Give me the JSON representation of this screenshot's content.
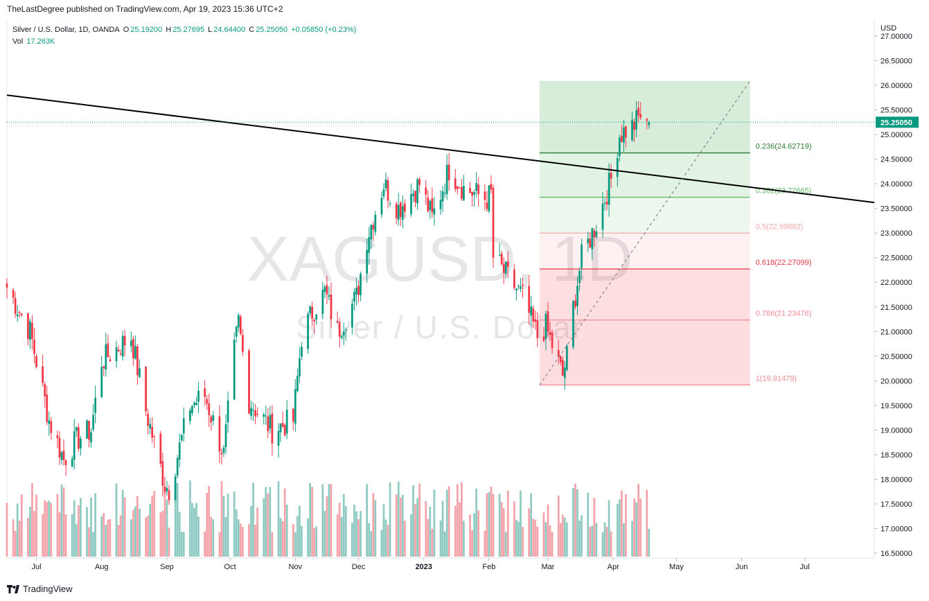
{
  "header": {
    "text": "TheLastDegree published on TradingView.com, Apr 19, 2023 15:36 UTC+2"
  },
  "legend": {
    "symbol": "Silver / U.S. Dollar, 1D, OANDA",
    "o_label": "O",
    "o_val": "25.19200",
    "h_label": "H",
    "h_val": "25.27695",
    "l_label": "L",
    "l_val": "24.64400",
    "c_label": "C",
    "c_val": "25.25050",
    "change": "+0.05850 (+0.23%)",
    "vol_label": "Vol",
    "vol_val": "17.263K"
  },
  "watermark": {
    "symbol": "XAGUSD, 1D",
    "name": "Silver / U.S. Dollar"
  },
  "footer": {
    "brand": "TradingView"
  },
  "chart_data": {
    "type": "candlestick",
    "currency_label": "USD",
    "last_price_label": "25.25050",
    "y_ticks": [
      "16.50000",
      "17.00000",
      "17.50000",
      "18.00000",
      "18.50000",
      "19.00000",
      "19.50000",
      "20.00000",
      "20.50000",
      "21.00000",
      "21.50000",
      "22.00000",
      "22.50000",
      "23.00000",
      "23.50000",
      "24.00000",
      "24.50000",
      "25.00000",
      "25.50000",
      "26.00000",
      "26.50000",
      "27.00000"
    ],
    "y_range": [
      16.4,
      27.5
    ],
    "x_ticks": [
      {
        "label": "Jul",
        "date": "2022-07-01"
      },
      {
        "label": "Aug",
        "date": "2022-08-01"
      },
      {
        "label": "Sep",
        "date": "2022-09-01"
      },
      {
        "label": "Oct",
        "date": "2022-10-01"
      },
      {
        "label": "Nov",
        "date": "2022-11-01"
      },
      {
        "label": "Dec",
        "date": "2022-12-01"
      },
      {
        "label": "2023",
        "date": "2023-01-01",
        "bold": true
      },
      {
        "label": "Feb",
        "date": "2023-02-01"
      },
      {
        "label": "Mar",
        "date": "2023-03-01"
      },
      {
        "label": "Apr",
        "date": "2023-04-01"
      },
      {
        "label": "May",
        "date": "2023-05-01"
      },
      {
        "label": "Jun",
        "date": "2023-06-01"
      },
      {
        "label": "Jul",
        "date": "2023-07-01"
      }
    ],
    "x_range": [
      "2022-06-17",
      "2023-08-03"
    ],
    "price_path": [
      [
        "2022-06-17",
        21.9
      ],
      [
        "2022-06-28",
        21.0
      ],
      [
        "2022-07-07",
        19.2
      ],
      [
        "2022-07-14",
        18.4
      ],
      [
        "2022-07-20",
        18.8
      ],
      [
        "2022-07-27",
        19.0
      ],
      [
        "2022-08-01",
        20.4
      ],
      [
        "2022-08-12",
        20.8
      ],
      [
        "2022-08-15",
        20.9
      ],
      [
        "2022-08-22",
        19.4
      ],
      [
        "2022-08-31",
        17.9
      ],
      [
        "2022-09-02",
        17.8
      ],
      [
        "2022-09-12",
        19.5
      ],
      [
        "2022-09-19",
        19.7
      ],
      [
        "2022-09-28",
        18.5
      ],
      [
        "2022-10-03",
        20.6
      ],
      [
        "2022-10-05",
        21.2
      ],
      [
        "2022-10-10",
        19.6
      ],
      [
        "2022-10-21",
        19.0
      ],
      [
        "2022-10-31",
        19.2
      ],
      [
        "2022-11-04",
        20.9
      ],
      [
        "2022-11-09",
        21.4
      ],
      [
        "2022-11-15",
        21.8
      ],
      [
        "2022-11-21",
        21.0
      ],
      [
        "2022-11-30",
        21.7
      ],
      [
        "2022-12-05",
        22.9
      ],
      [
        "2022-12-13",
        24.0
      ],
      [
        "2022-12-20",
        23.5
      ],
      [
        "2022-12-30",
        24.0
      ],
      [
        "2023-01-05",
        23.3
      ],
      [
        "2023-01-13",
        24.3
      ],
      [
        "2023-01-20",
        23.9
      ],
      [
        "2023-01-31",
        23.7
      ],
      [
        "2023-02-02",
        23.8
      ],
      [
        "2023-02-03",
        22.5
      ],
      [
        "2023-02-10",
        22.1
      ],
      [
        "2023-02-17",
        21.7
      ],
      [
        "2023-02-24",
        20.9
      ],
      [
        "2023-02-28",
        21.1
      ],
      [
        "2023-03-08",
        20.1
      ],
      [
        "2023-03-10",
        20.5
      ],
      [
        "2023-03-13",
        21.5
      ],
      [
        "2023-03-17",
        22.5
      ],
      [
        "2023-03-24",
        23.2
      ],
      [
        "2023-03-31",
        24.1
      ],
      [
        "2023-04-04",
        25.0
      ],
      [
        "2023-04-11",
        25.2
      ],
      [
        "2023-04-14",
        25.4
      ],
      [
        "2023-04-17",
        25.1
      ],
      [
        "2023-04-18",
        25.2505
      ]
    ],
    "volume_axis_max": 20000,
    "trendline": {
      "points": [
        [
          "2022-06-17",
          25.8
        ],
        [
          "2023-08-03",
          23.62
        ]
      ],
      "color": "#000000"
    },
    "diagonal": {
      "points": [
        [
          "2023-02-25",
          19.91479
        ],
        [
          "2023-06-05",
          26.09
        ]
      ],
      "color": "#888888"
    },
    "fib": {
      "x_start": "2023-02-25",
      "x_end": "2023-06-05",
      "levels": [
        {
          "ratio": 0.236,
          "price": 24.62719,
          "label": "0.236(24.62719)",
          "color": "#2e7d32"
        },
        {
          "ratio": 0.382,
          "price": 23.72665,
          "label": "0.382(23.72665)",
          "color": "#66bb6a"
        },
        {
          "ratio": 0.5,
          "price": 22.99882,
          "label": "0.5(22.99882)",
          "color": "#f7a8ae"
        },
        {
          "ratio": 0.618,
          "price": 22.27099,
          "label": "0.618(22.27099)",
          "color": "#e53946"
        },
        {
          "ratio": 0.786,
          "price": 21.23476,
          "label": "0.786(21.23476)",
          "color": "#ef8a93"
        },
        {
          "ratio": 1,
          "price": 19.91479,
          "label": "1(19.91479)",
          "color": "#ef8a93"
        }
      ],
      "top_price": 26.09,
      "zone_colors": {
        "green": "#4caf50",
        "red": "#f23645"
      }
    },
    "colors": {
      "up": "#089981",
      "down": "#f23645",
      "vol_up": "#8ecac2",
      "vol_down": "#f3a3a9",
      "price_line": "#089981"
    }
  }
}
